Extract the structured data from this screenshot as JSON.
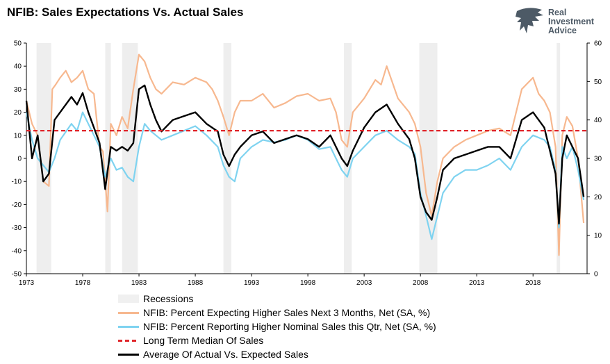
{
  "title": "NFIB: Sales Expectations Vs. Actual Sales",
  "brand": {
    "lines": [
      "Real",
      "Investment",
      "Advice"
    ],
    "color": "#4d5a66"
  },
  "chart_data": {
    "type": "line",
    "title": "NFIB: Sales Expectations Vs. Actual Sales",
    "x_ticks": [
      "1973",
      "1978",
      "1983",
      "1988",
      "1993",
      "1998",
      "2003",
      "2008",
      "2013",
      "2018"
    ],
    "xlim": [
      1973,
      2022.8
    ],
    "ylim_left": [
      -50,
      50
    ],
    "yticks_left": [
      "50",
      "40",
      "30",
      "20",
      "10",
      "0",
      "-10",
      "-20",
      "-30",
      "-40",
      "-50"
    ],
    "ylim_right": [
      0,
      60
    ],
    "yticks_right": [
      "60",
      "50",
      "40",
      "30",
      "20",
      "10",
      "0"
    ],
    "recessions": [
      [
        1973.9,
        1975.2
      ],
      [
        1980.0,
        1980.5
      ],
      [
        1981.5,
        1982.9
      ],
      [
        1990.5,
        1991.2
      ],
      [
        2001.2,
        2001.9
      ],
      [
        2007.9,
        2009.5
      ],
      [
        2020.1,
        2020.4
      ]
    ],
    "median": 12,
    "legend": [
      {
        "label": "Recessions",
        "color": "#f0f0f0",
        "style": "rect"
      },
      {
        "label": "NFIB: Percent Expecting Higher Sales Next 3 Months, Net (SA, %)",
        "color": "#f7b88f",
        "style": "line"
      },
      {
        "label": "NFIB: Percent Reporting Higher Nominal Sales this Qtr, Net (SA, %)",
        "color": "#7fd3f0",
        "style": "line"
      },
      {
        "label": "Long Term Median Of Sales",
        "color": "#e0262b",
        "style": "dashed"
      },
      {
        "label": "Average Of Actual Vs. Expected Sales",
        "color": "#000000",
        "style": "line"
      }
    ],
    "series": [
      {
        "name": "NFIB: Percent Expecting Higher Sales Next 3 Months, Net (SA, %)",
        "axis": "left",
        "color": "#f7b88f",
        "x": [
          1973.0,
          1973.5,
          1974.0,
          1974.5,
          1975.0,
          1975.3,
          1975.6,
          1976.0,
          1976.5,
          1977.0,
          1977.5,
          1978.0,
          1978.5,
          1979.0,
          1979.5,
          1979.8,
          1980.2,
          1980.5,
          1981.0,
          1981.5,
          1982.0,
          1982.5,
          1983.0,
          1983.5,
          1984.0,
          1984.5,
          1985.0,
          1986.0,
          1987.0,
          1988.0,
          1989.0,
          1989.5,
          1990.0,
          1990.5,
          1991.0,
          1991.5,
          1992.0,
          1993.0,
          1994.0,
          1995.0,
          1996.0,
          1997.0,
          1998.0,
          1999.0,
          2000.0,
          2000.5,
          2001.0,
          2001.5,
          2002.0,
          2003.0,
          2004.0,
          2004.5,
          2005.0,
          2006.0,
          2007.0,
          2007.5,
          2008.0,
          2008.5,
          2009.0,
          2009.5,
          2010.0,
          2011.0,
          2012.0,
          2013.0,
          2014.0,
          2015.0,
          2016.0,
          2017.0,
          2018.0,
          2018.5,
          2019.0,
          2019.5,
          2020.0,
          2020.3,
          2020.6,
          2021.0,
          2021.5,
          2022.0,
          2022.5
        ],
        "values": [
          25,
          15,
          10,
          -10,
          -12,
          30,
          32,
          35,
          38,
          33,
          35,
          38,
          30,
          28,
          5,
          3,
          -23,
          15,
          10,
          18,
          13,
          30,
          45,
          42,
          35,
          30,
          28,
          33,
          32,
          35,
          33,
          30,
          25,
          18,
          10,
          20,
          25,
          25,
          28,
          22,
          24,
          27,
          28,
          25,
          26,
          20,
          8,
          5,
          20,
          26,
          34,
          32,
          40,
          26,
          20,
          15,
          5,
          -15,
          -25,
          -10,
          0,
          5,
          8,
          10,
          12,
          13,
          10,
          30,
          35,
          28,
          25,
          20,
          5,
          -42,
          10,
          18,
          14,
          0,
          -28
        ]
      },
      {
        "name": "NFIB: Percent Reporting Higher Nominal Sales this Qtr, Net (SA, %)",
        "axis": "left",
        "color": "#7fd3f0",
        "x": [
          1973.0,
          1973.5,
          1974.0,
          1974.5,
          1975.0,
          1975.5,
          1976.0,
          1977.0,
          1977.5,
          1978.0,
          1978.5,
          1979.0,
          1979.5,
          1980.0,
          1980.5,
          1981.0,
          1981.5,
          1982.0,
          1982.5,
          1983.0,
          1983.5,
          1984.0,
          1985.0,
          1986.0,
          1987.0,
          1988.0,
          1989.0,
          1990.0,
          1990.5,
          1991.0,
          1991.5,
          1992.0,
          1993.0,
          1994.0,
          1995.0,
          1996.0,
          1997.0,
          1998.0,
          1999.0,
          2000.0,
          2001.0,
          2001.5,
          2002.0,
          2003.0,
          2004.0,
          2005.0,
          2006.0,
          2007.0,
          2007.5,
          2008.0,
          2008.5,
          2009.0,
          2009.5,
          2010.0,
          2011.0,
          2012.0,
          2013.0,
          2014.0,
          2015.0,
          2016.0,
          2017.0,
          2018.0,
          2019.0,
          2019.5,
          2020.0,
          2020.3,
          2020.6,
          2021.0,
          2021.5,
          2022.0,
          2022.5
        ],
        "values": [
          20,
          8,
          0,
          -3,
          -6,
          0,
          8,
          15,
          12,
          20,
          15,
          10,
          5,
          -8,
          0,
          -5,
          -4,
          -8,
          -10,
          5,
          15,
          12,
          8,
          10,
          12,
          14,
          10,
          5,
          -3,
          -8,
          -10,
          0,
          5,
          8,
          7,
          8,
          10,
          8,
          4,
          5,
          -5,
          -8,
          0,
          5,
          10,
          12,
          8,
          5,
          2,
          -15,
          -25,
          -35,
          -25,
          -15,
          -8,
          -5,
          -5,
          -3,
          0,
          -5,
          5,
          10,
          8,
          5,
          -5,
          -30,
          5,
          0,
          5,
          -5,
          -18
        ]
      },
      {
        "name": "Average Of Actual Vs. Expected Sales",
        "axis": "right",
        "color": "#000000",
        "x": [
          1973.0,
          1973.5,
          1974.0,
          1974.5,
          1975.0,
          1975.5,
          1976.0,
          1977.0,
          1977.5,
          1978.0,
          1978.5,
          1979.0,
          1979.5,
          1980.0,
          1980.5,
          1981.0,
          1981.5,
          1982.0,
          1982.5,
          1983.0,
          1983.5,
          1984.0,
          1984.5,
          1985.0,
          1986.0,
          1987.0,
          1988.0,
          1989.0,
          1990.0,
          1990.5,
          1991.0,
          1991.5,
          1992.0,
          1993.0,
          1994.0,
          1995.0,
          1996.0,
          1997.0,
          1998.0,
          1999.0,
          2000.0,
          2001.0,
          2001.5,
          2002.0,
          2003.0,
          2004.0,
          2005.0,
          2006.0,
          2007.0,
          2007.5,
          2008.0,
          2008.5,
          2009.0,
          2009.5,
          2010.0,
          2011.0,
          2012.0,
          2013.0,
          2014.0,
          2015.0,
          2016.0,
          2017.0,
          2018.0,
          2019.0,
          2019.5,
          2020.0,
          2020.3,
          2020.6,
          2021.0,
          2021.5,
          2022.0,
          2022.5
        ],
        "values": [
          45,
          30,
          36,
          24,
          26,
          40,
          42,
          46,
          44,
          47,
          42,
          38,
          34,
          22,
          33,
          32,
          33,
          32,
          34,
          48,
          49,
          44,
          40,
          37,
          40,
          41,
          42,
          39,
          37,
          31,
          28,
          31,
          33,
          36,
          37,
          34,
          35,
          36,
          35,
          33,
          36,
          30,
          28,
          32,
          38,
          42,
          44,
          39,
          35,
          30,
          20,
          16,
          14,
          20,
          27,
          30,
          31,
          32,
          33,
          33,
          30,
          40,
          42,
          38,
          32,
          26,
          13,
          30,
          36,
          33,
          30,
          20
        ]
      }
    ]
  }
}
